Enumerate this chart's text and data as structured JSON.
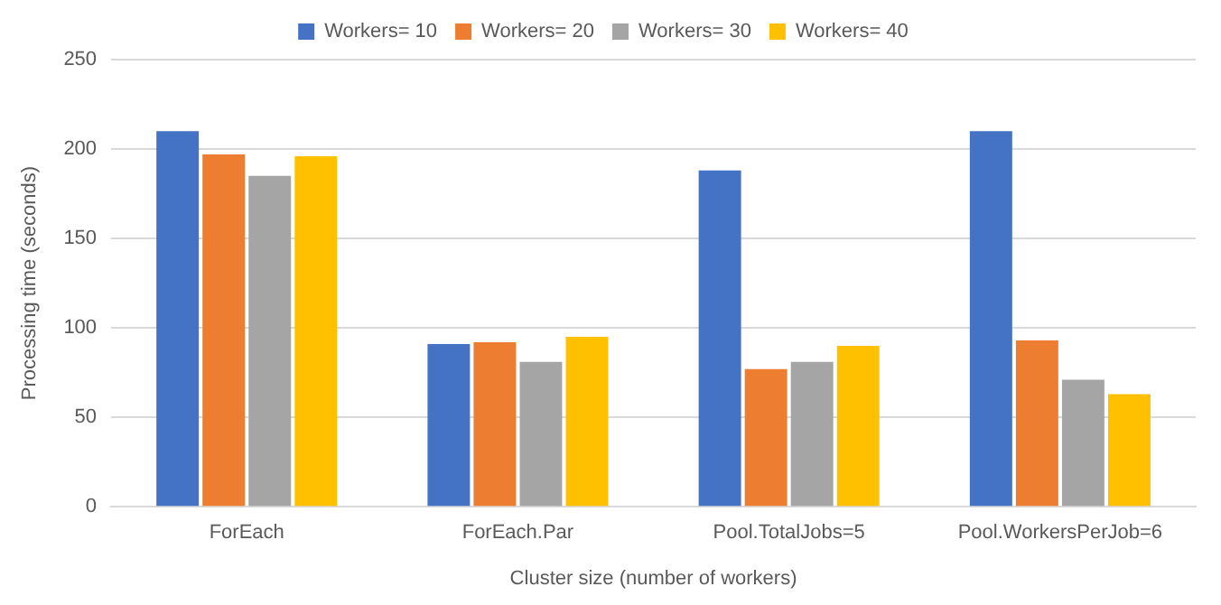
{
  "chart_data": {
    "type": "bar",
    "xlabel": "Cluster size (number of workers)",
    "ylabel": "Processing time (seconds)",
    "categories": [
      "ForEach",
      "ForEach.Par",
      "Pool.TotalJobs=5",
      "Pool.WorkersPerJob=6"
    ],
    "series": [
      {
        "name": "Workers= 10",
        "color": "#4472c4",
        "values": [
          210,
          91,
          188,
          210
        ]
      },
      {
        "name": "Workers= 20",
        "color": "#ed7d31",
        "values": [
          197,
          92,
          77,
          93
        ]
      },
      {
        "name": "Workers= 30",
        "color": "#a5a5a5",
        "values": [
          185,
          81,
          81,
          71
        ]
      },
      {
        "name": "Workers= 40",
        "color": "#ffc000",
        "values": [
          196,
          95,
          90,
          63
        ]
      }
    ],
    "ylim": [
      0,
      250
    ],
    "yticks": [
      0,
      50,
      100,
      150,
      200,
      250
    ],
    "grid": "y",
    "legend": "top"
  }
}
